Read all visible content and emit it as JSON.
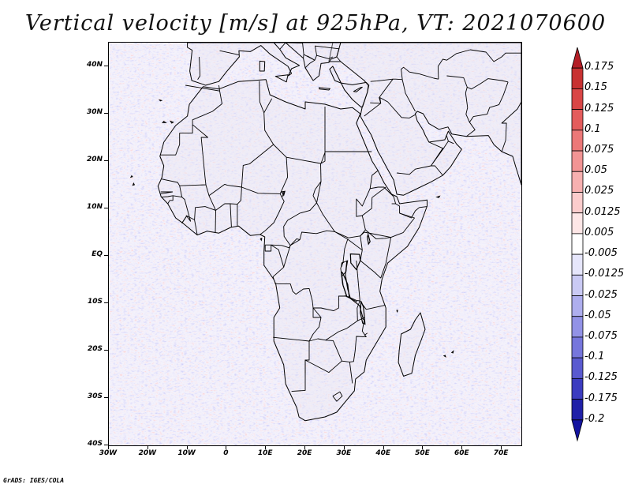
{
  "title": "Vertical velocity [m/s] at 925hPa, VT: 2021070600",
  "credit": "GrADS: IGES/COLA",
  "map": {
    "lon_range": [
      -30,
      75
    ],
    "lat_range": [
      -40,
      45
    ],
    "land_tint": "#e8e4f2"
  },
  "axes": {
    "lat_labels": [
      "40N",
      "30N",
      "20N",
      "10N",
      "EQ",
      "10S",
      "20S",
      "30S",
      "40S"
    ],
    "lon_labels": [
      "30W",
      "20W",
      "10W",
      "0",
      "10E",
      "20E",
      "30E",
      "40E",
      "50E",
      "60E",
      "70E"
    ]
  },
  "colorbar": {
    "labels": [
      "0.175",
      "0.15",
      "0.125",
      "0.1",
      "0.075",
      "0.05",
      "0.025",
      "0.0125",
      "0.005",
      "-0.005",
      "-0.0125",
      "-0.025",
      "-0.05",
      "-0.075",
      "-0.1",
      "-0.125",
      "-0.175",
      "-0.2"
    ],
    "colors": [
      "#b41e26",
      "#c83232",
      "#d94646",
      "#e45c5c",
      "#ec7878",
      "#f29494",
      "#f7b0b0",
      "#fbcccc",
      "#fde6e6",
      "#ffffff",
      "#e6e6fb",
      "#cacaf4",
      "#aeaeee",
      "#9292e6",
      "#7676dc",
      "#5a5ad0",
      "#3c3cc0",
      "#2020a8",
      "#1414a0"
    ]
  }
}
